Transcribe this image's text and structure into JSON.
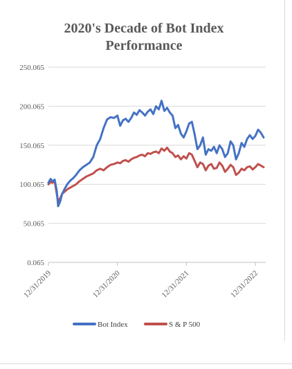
{
  "chart_data": {
    "type": "line",
    "title_lines": [
      "2020's Decade of Bot Index",
      "Performance"
    ],
    "xlabel": "",
    "ylabel": "",
    "ylim": [
      0.065,
      250.065
    ],
    "y_ticks": [
      "0.065",
      "50.065",
      "100.065",
      "150.065",
      "200.065",
      "250.065"
    ],
    "y_tick_values": [
      0.065,
      50.065,
      100.065,
      150.065,
      200.065,
      250.065
    ],
    "x_ticks": [
      "12/31/2019",
      "12/31/2020",
      "12/31/2021",
      "12/31/2022"
    ],
    "x_tick_values": [
      2020.0,
      2021.0,
      2022.0,
      2023.0
    ],
    "xlim": [
      2020.0,
      2023.15
    ],
    "grid": "horizontal",
    "legend_position": "bottom",
    "series": [
      {
        "name": "Bot Index",
        "color": "#4472c4",
        "x": [
          2020.0,
          2020.03,
          2020.06,
          2020.09,
          2020.12,
          2020.14,
          2020.17,
          2020.2,
          2020.24,
          2020.28,
          2020.32,
          2020.36,
          2020.4,
          2020.45,
          2020.5,
          2020.55,
          2020.6,
          2020.65,
          2020.7,
          2020.75,
          2020.8,
          2020.85,
          2020.9,
          2020.95,
          2021.0,
          2021.04,
          2021.08,
          2021.12,
          2021.16,
          2021.2,
          2021.24,
          2021.28,
          2021.32,
          2021.36,
          2021.4,
          2021.44,
          2021.48,
          2021.52,
          2021.56,
          2021.6,
          2021.64,
          2021.68,
          2021.72,
          2021.76,
          2021.8,
          2021.84,
          2021.88,
          2021.92,
          2021.96,
          2022.0,
          2022.04,
          2022.08,
          2022.12,
          2022.16,
          2022.2,
          2022.24,
          2022.28,
          2022.32,
          2022.36,
          2022.4,
          2022.44,
          2022.48,
          2022.52,
          2022.56,
          2022.6,
          2022.64,
          2022.68,
          2022.72,
          2022.76,
          2022.8,
          2022.84,
          2022.88,
          2022.92,
          2022.96,
          2023.0,
          2023.04,
          2023.08,
          2023.12
        ],
        "values": [
          102,
          107,
          104,
          106,
          92,
          72,
          78,
          88,
          95,
          101,
          105,
          108,
          112,
          118,
          122,
          125,
          128,
          135,
          150,
          158,
          172,
          183,
          186,
          185,
          188,
          175,
          182,
          184,
          180,
          185,
          192,
          189,
          195,
          192,
          188,
          193,
          196,
          190,
          200,
          196,
          207,
          194,
          198,
          192,
          188,
          172,
          176,
          165,
          160,
          168,
          178,
          180,
          164,
          145,
          150,
          160,
          138,
          145,
          143,
          148,
          140,
          150,
          145,
          135,
          140,
          155,
          150,
          132,
          140,
          153,
          148,
          158,
          163,
          158,
          162,
          170,
          166,
          160
        ]
      },
      {
        "name": "S & P 500",
        "color": "#c0504d",
        "x": [
          2020.0,
          2020.03,
          2020.06,
          2020.09,
          2020.12,
          2020.14,
          2020.17,
          2020.2,
          2020.24,
          2020.28,
          2020.32,
          2020.36,
          2020.4,
          2020.45,
          2020.5,
          2020.55,
          2020.6,
          2020.65,
          2020.7,
          2020.75,
          2020.8,
          2020.85,
          2020.9,
          2020.95,
          2021.0,
          2021.04,
          2021.08,
          2021.12,
          2021.16,
          2021.2,
          2021.24,
          2021.28,
          2021.32,
          2021.36,
          2021.4,
          2021.44,
          2021.48,
          2021.52,
          2021.56,
          2021.6,
          2021.64,
          2021.68,
          2021.72,
          2021.76,
          2021.8,
          2021.84,
          2021.88,
          2021.92,
          2021.96,
          2022.0,
          2022.04,
          2022.08,
          2022.12,
          2022.16,
          2022.2,
          2022.24,
          2022.28,
          2022.32,
          2022.36,
          2022.4,
          2022.44,
          2022.48,
          2022.52,
          2022.56,
          2022.6,
          2022.64,
          2022.68,
          2022.72,
          2022.76,
          2022.8,
          2022.84,
          2022.88,
          2022.92,
          2022.96,
          2023.0,
          2023.04,
          2023.08,
          2023.12
        ],
        "values": [
          100,
          103,
          102,
          104,
          88,
          78,
          82,
          88,
          91,
          94,
          96,
          98,
          100,
          104,
          107,
          110,
          112,
          114,
          118,
          120,
          118,
          122,
          125,
          126,
          128,
          127,
          130,
          131,
          129,
          132,
          134,
          135,
          137,
          138,
          136,
          140,
          139,
          141,
          142,
          140,
          146,
          143,
          147,
          142,
          140,
          135,
          137,
          132,
          136,
          133,
          140,
          138,
          130,
          122,
          128,
          126,
          118,
          124,
          126,
          120,
          121,
          128,
          124,
          116,
          120,
          125,
          122,
          112,
          115,
          120,
          118,
          122,
          123,
          119,
          122,
          126,
          124,
          122
        ]
      }
    ]
  }
}
